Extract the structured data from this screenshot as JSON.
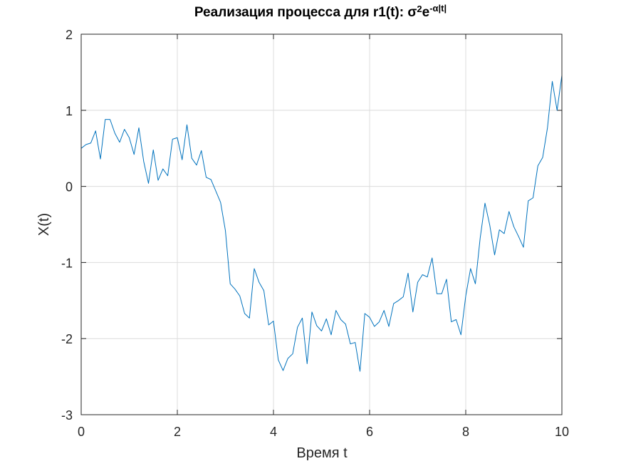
{
  "chart_data": {
    "type": "line",
    "title": {
      "main": "Реализация процесса для r1(t): σ",
      "sup1": "2",
      "mid": "e",
      "sup2": "-α|t|"
    },
    "xlabel": "Время t",
    "ylabel": "X(t)",
    "xlim": [
      0,
      10
    ],
    "ylim": [
      -3,
      2
    ],
    "xticks": [
      0,
      2,
      4,
      6,
      8,
      10
    ],
    "yticks": [
      -3,
      -2,
      -1,
      0,
      1,
      2
    ],
    "xtick_labels": [
      "0",
      "2",
      "4",
      "6",
      "8",
      "10"
    ],
    "ytick_labels": [
      "-3",
      "-2",
      "-1",
      "0",
      "1",
      "2"
    ],
    "grid": true,
    "line_color": "#0072bd",
    "series": [
      {
        "x": [
          0,
          0.1,
          0.2,
          0.3,
          0.4,
          0.5,
          0.6,
          0.7,
          0.8,
          0.9,
          1.0,
          1.1,
          1.2,
          1.3,
          1.4,
          1.5,
          1.6,
          1.7,
          1.8,
          1.9,
          2.0,
          2.1,
          2.2,
          2.3,
          2.4,
          2.5,
          2.6,
          2.7,
          2.8,
          2.9,
          3.0,
          3.1,
          3.2,
          3.3,
          3.4,
          3.5,
          3.6,
          3.7,
          3.8,
          3.9,
          4.0,
          4.1,
          4.2,
          4.3,
          4.4,
          4.5,
          4.6,
          4.7,
          4.8,
          4.9,
          5.0,
          5.1,
          5.2,
          5.3,
          5.4,
          5.5,
          5.6,
          5.7,
          5.8,
          5.9,
          6.0,
          6.1,
          6.2,
          6.3,
          6.4,
          6.5,
          6.6,
          6.7,
          6.8,
          6.9,
          7.0,
          7.1,
          7.2,
          7.3,
          7.4,
          7.5,
          7.6,
          7.7,
          7.8,
          7.9,
          8.0,
          8.1,
          8.2,
          8.3,
          8.4,
          8.5,
          8.6,
          8.7,
          8.8,
          8.9,
          9.0,
          9.1,
          9.2,
          9.3,
          9.4,
          9.5,
          9.6,
          9.7,
          9.8,
          9.9,
          10.0
        ],
        "y": [
          0.5,
          0.55,
          0.57,
          0.73,
          0.36,
          0.88,
          0.88,
          0.7,
          0.58,
          0.75,
          0.64,
          0.42,
          0.77,
          0.33,
          0.04,
          0.48,
          0.08,
          0.23,
          0.14,
          0.62,
          0.64,
          0.35,
          0.81,
          0.37,
          0.28,
          0.47,
          0.12,
          0.09,
          -0.06,
          -0.21,
          -0.58,
          -1.28,
          -1.35,
          -1.44,
          -1.67,
          -1.73,
          -1.08,
          -1.26,
          -1.37,
          -1.82,
          -1.77,
          -2.28,
          -2.42,
          -2.26,
          -2.2,
          -1.85,
          -1.73,
          -2.33,
          -1.65,
          -1.83,
          -1.9,
          -1.74,
          -1.95,
          -1.63,
          -1.75,
          -1.81,
          -2.07,
          -2.05,
          -2.43,
          -1.67,
          -1.72,
          -1.84,
          -1.78,
          -1.63,
          -1.84,
          -1.54,
          -1.5,
          -1.45,
          -1.14,
          -1.65,
          -1.26,
          -1.16,
          -1.19,
          -0.94,
          -1.41,
          -1.41,
          -1.22,
          -1.78,
          -1.75,
          -1.95,
          -1.44,
          -1.08,
          -1.28,
          -0.68,
          -0.22,
          -0.51,
          -0.9,
          -0.57,
          -0.62,
          -0.33,
          -0.53,
          -0.66,
          -0.8,
          -0.19,
          -0.15,
          0.27,
          0.38,
          0.77,
          1.38,
          1.0,
          1.46
        ]
      }
    ]
  }
}
